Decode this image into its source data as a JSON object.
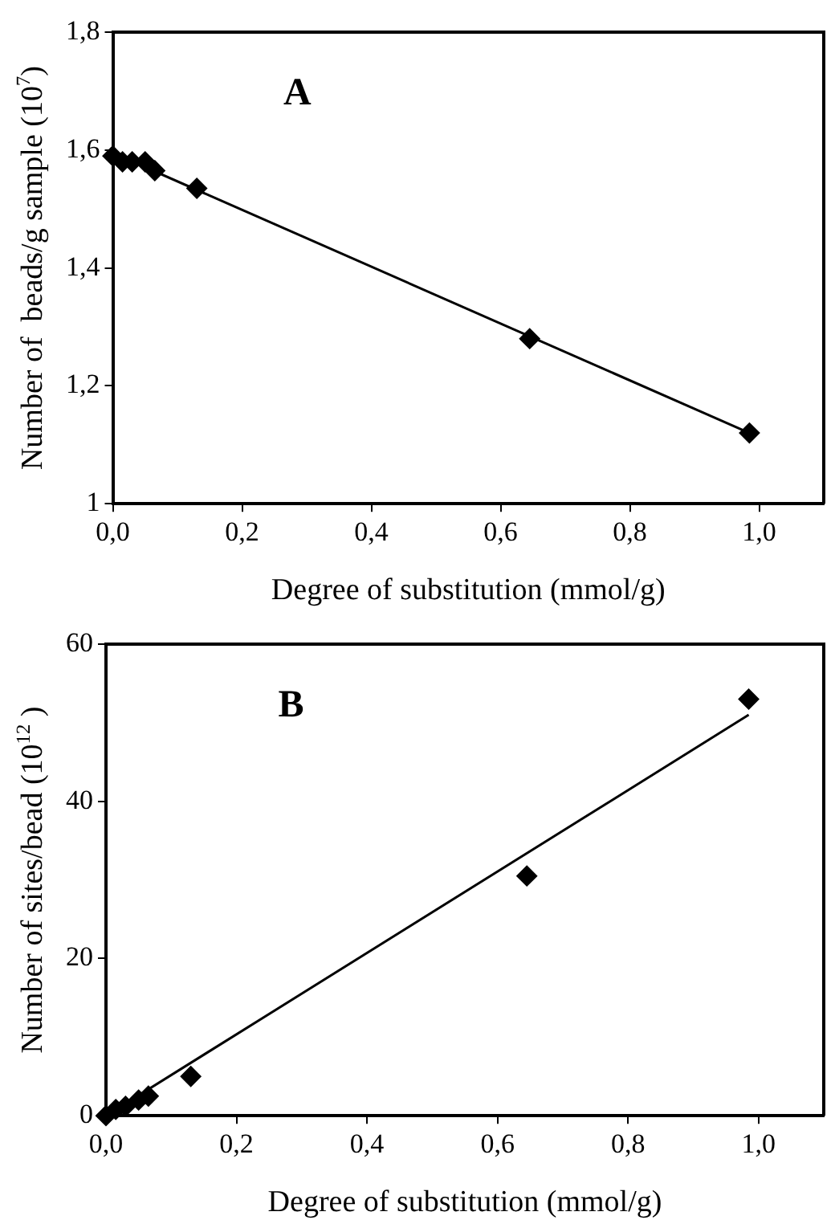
{
  "chart_data": [
    {
      "type": "scatter",
      "annotations": [
        "A"
      ],
      "xlabel": "Degree of substitution (mmol/g)",
      "ylabel": "Number of  beads/g sample (10$^{7}$)",
      "xlim": [
        0,
        1.1
      ],
      "xticks": [
        {
          "value": 0,
          "label": "0,0"
        },
        {
          "value": 0.2,
          "label": "0,2"
        },
        {
          "value": 0.4,
          "label": "0,4"
        },
        {
          "value": 0.6,
          "label": "0,6"
        },
        {
          "value": 0.8,
          "label": "0,8"
        },
        {
          "value": 1,
          "label": "1,0"
        }
      ],
      "ylim": [
        1,
        1.8
      ],
      "yticks": [
        1,
        {
          "value": 1.2,
          "label": "1,2"
        },
        {
          "value": 1.4,
          "label": "1,4"
        },
        {
          "value": 1.6,
          "label": "1,6"
        },
        {
          "value": 1.8,
          "label": "1,8"
        }
      ],
      "grid": false,
      "legend": false,
      "marker": "diamond",
      "series": [
        {
          "color": "#000000",
          "x": [
            0.0,
            0.015,
            0.03,
            0.05,
            0.065,
            0.13,
            0.645,
            0.985
          ],
          "values": [
            1.59,
            1.58,
            1.58,
            1.58,
            1.565,
            1.535,
            1.28,
            1.12
          ]
        },
        {
          "type": "line",
          "marker": "none",
          "color": "#000000",
          "x": [
            0,
            0.985
          ],
          "values": [
            1.595,
            1.12
          ]
        }
      ]
    },
    {
      "type": "scatter",
      "annotations": [
        "B"
      ],
      "xlabel": "Degree of substitution (mmol/g)",
      "ylabel": "Number of sites/bead (10$^{12}$ )",
      "xlim": [
        0,
        1.1
      ],
      "xticks": [
        {
          "value": 0,
          "label": "0,0"
        },
        {
          "value": 0.2,
          "label": "0,2"
        },
        {
          "value": 0.4,
          "label": "0,4"
        },
        {
          "value": 0.6,
          "label": "0,6"
        },
        {
          "value": 0.8,
          "label": "0,8"
        },
        {
          "value": 1,
          "label": "1,0"
        }
      ],
      "ylim": [
        0,
        60
      ],
      "yticks": [
        0,
        20,
        40,
        60
      ],
      "grid": false,
      "legend": false,
      "marker": "diamond",
      "series": [
        {
          "color": "#000000",
          "x": [
            0.0,
            0.015,
            0.03,
            0.05,
            0.065,
            0.13,
            0.645,
            0.985
          ],
          "values": [
            0,
            0.8,
            1.2,
            2,
            2.5,
            5,
            30.5,
            53
          ]
        },
        {
          "type": "line",
          "marker": "none",
          "color": "#000000",
          "x": [
            0,
            0.985
          ],
          "values": [
            0,
            51
          ]
        }
      ]
    }
  ]
}
